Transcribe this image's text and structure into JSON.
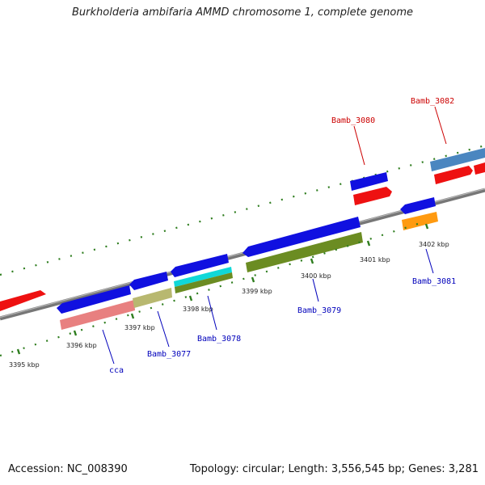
{
  "title": "Burkholderia ambifaria AMMD chromosome 1, complete genome",
  "footer": {
    "accession": "Accession: NC_008390",
    "summary": "Topology: circular; Length: 3,556,545 bp; Genes: 3,281"
  },
  "colors": {
    "backbone": "#8a8a8a",
    "tick": "#2e7d1e",
    "forward_label": "#cc0000",
    "reverse_label": "#0000bb",
    "cds_blue": "#1010e0",
    "cds_red": "#ee1111",
    "rna_pink": "#e88080",
    "rna_khaki": "#b8b870",
    "rna_cyan": "#10d8d8",
    "rna_olive": "#6b8c22",
    "cds_orange": "#ff9a10",
    "cds_steel": "#4a86c0"
  },
  "axis": {
    "unit": "kbp",
    "tick_labels": [
      "3395 kbp",
      "3396 kbp",
      "3397 kbp",
      "3398 kbp",
      "3399 kbp",
      "3400 kbp",
      "3401 kbp",
      "3402 kbp"
    ]
  },
  "gene_labels": {
    "forward": [
      "Bamb_3080",
      "Bamb_3082"
    ],
    "reverse": [
      "cca",
      "Bamb_3077",
      "Bamb_3078",
      "Bamb_3079",
      "Bamb_3081"
    ]
  }
}
